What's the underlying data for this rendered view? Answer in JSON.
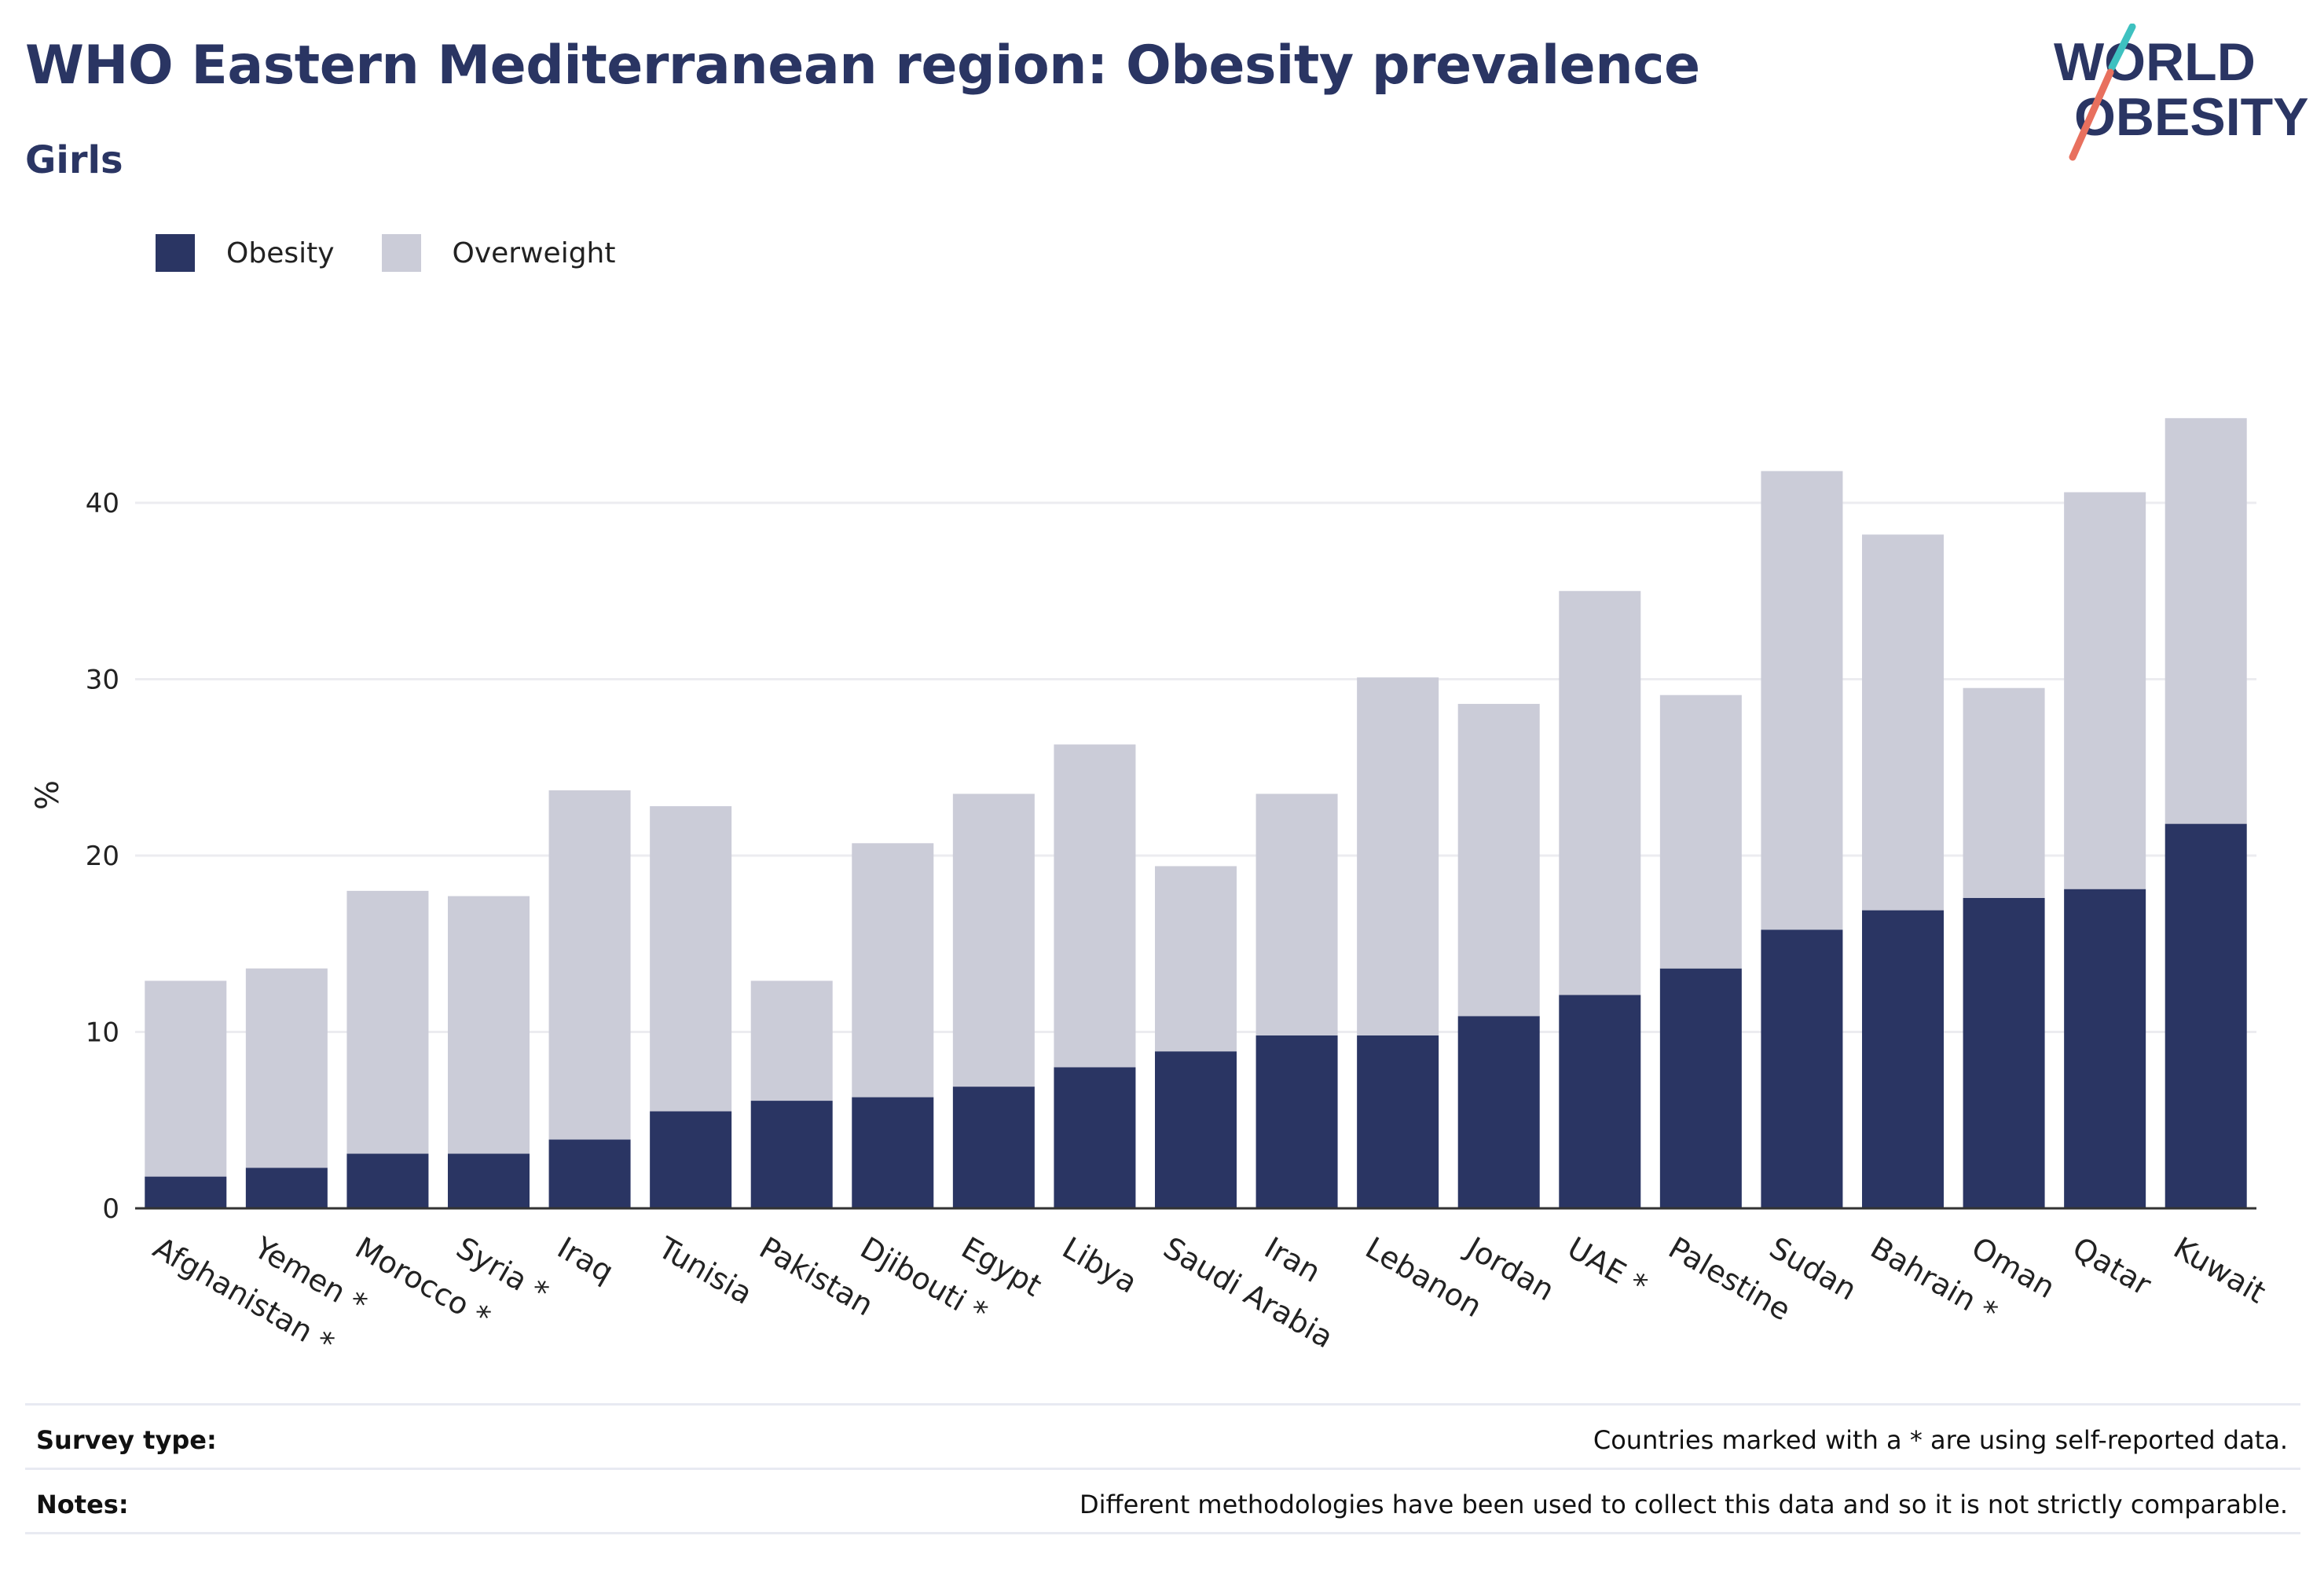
{
  "header": {
    "title": "WHO Eastern Mediterranean region: Obesity prevalence",
    "subtitle": "Girls"
  },
  "logo": {
    "line1": "WORLD",
    "line2": "OBESITY",
    "accent_colors": [
      "#3ec1c0",
      "#e8705e"
    ]
  },
  "legend": {
    "items": [
      {
        "label": "Obesity",
        "color": "#2a3563"
      },
      {
        "label": "Overweight",
        "color": "#cbccd8"
      }
    ]
  },
  "chart_data": {
    "type": "bar",
    "stacked": true,
    "ylabel": "%",
    "xlabel": "",
    "ylim": [
      0,
      47
    ],
    "yticks": [
      0,
      10,
      20,
      30,
      40
    ],
    "grid": true,
    "legend_position": "top-left",
    "categories": [
      "Afghanistan *",
      "Yemen *",
      "Morocco *",
      "Syria *",
      "Iraq",
      "Tunisia",
      "Pakistan",
      "Djibouti *",
      "Egypt",
      "Libya",
      "Saudi Arabia",
      "Iran",
      "Lebanon",
      "Jordan",
      "UAE *",
      "Palestine",
      "Sudan",
      "Bahrain *",
      "Oman",
      "Qatar",
      "Kuwait"
    ],
    "series": [
      {
        "name": "Obesity",
        "color": "#2a3563",
        "values": [
          1.8,
          2.3,
          3.1,
          3.1,
          3.9,
          5.5,
          6.1,
          6.3,
          6.9,
          8.0,
          8.9,
          9.8,
          9.8,
          10.9,
          12.1,
          13.6,
          15.8,
          16.9,
          17.6,
          18.1,
          21.8
        ]
      },
      {
        "name": "Overweight",
        "color": "#cbccd8",
        "values": [
          11.1,
          11.3,
          14.9,
          14.6,
          19.8,
          17.3,
          6.8,
          14.4,
          16.6,
          18.3,
          10.5,
          13.7,
          20.3,
          17.7,
          22.9,
          15.5,
          26.0,
          21.3,
          11.9,
          22.5,
          23.0
        ]
      }
    ]
  },
  "footer": {
    "survey_label": "Survey type:",
    "survey_text": "Countries marked with a * are using self-reported data.",
    "notes_label": "Notes:",
    "notes_text": "Different methodologies have been used to collect this data and so it is not strictly comparable."
  }
}
